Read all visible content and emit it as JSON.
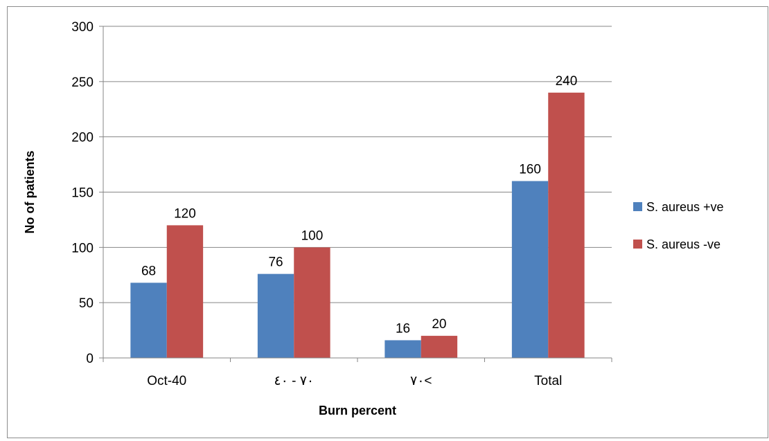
{
  "chart_data": {
    "type": "bar",
    "categories": [
      "Oct-40",
      "٧٠ - ٤٠",
      "٧٠<",
      "Total"
    ],
    "series": [
      {
        "name": "S. aureus +ve",
        "color": "#4f81bd",
        "values": [
          68,
          76,
          16,
          160
        ]
      },
      {
        "name": "S. aureus -ve",
        "color": "#c0504d",
        "values": [
          120,
          100,
          20,
          240
        ]
      }
    ],
    "title": "",
    "xlabel": "Burn percent",
    "ylabel": "No of patients",
    "ylim": [
      0,
      300
    ],
    "yticks": [
      0,
      50,
      100,
      150,
      200,
      250,
      300
    ],
    "grid": true,
    "legend_position": "right",
    "data_labels": true
  }
}
